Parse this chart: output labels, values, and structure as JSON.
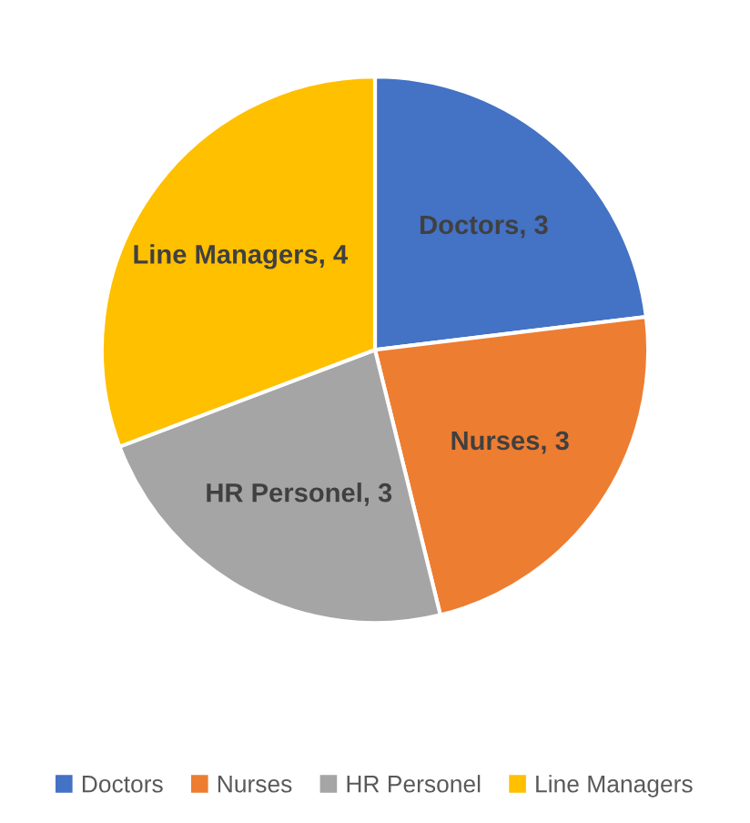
{
  "chart_data": {
    "type": "pie",
    "categories": [
      "Doctors",
      "Nurses",
      "HR Personel",
      "Line Managers"
    ],
    "values": [
      3,
      3,
      3,
      4
    ],
    "colors": [
      "#4472c4",
      "#ed7d31",
      "#a5a5a5",
      "#ffc000"
    ],
    "value_labels": [
      "Doctors, 3",
      "Nurses, 3",
      "HR Personel, 3",
      "Line Managers, 4"
    ],
    "legend": "bottom"
  }
}
